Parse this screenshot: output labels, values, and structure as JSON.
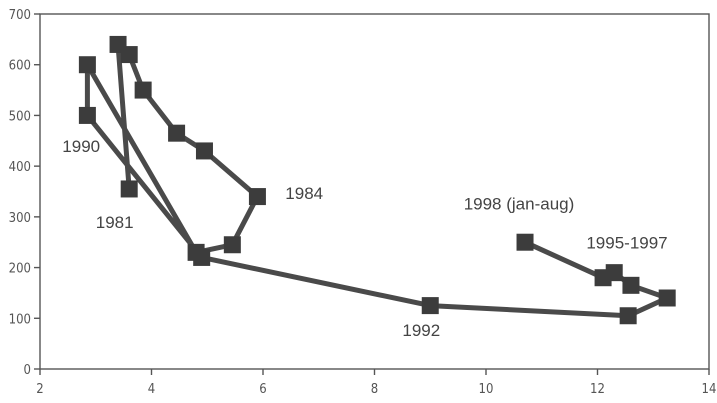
{
  "chart_data": {
    "type": "line",
    "title": "",
    "xlabel": "",
    "ylabel": "",
    "xlim": [
      2,
      14
    ],
    "ylim": [
      0,
      700
    ],
    "xticks": [
      "2",
      "4",
      "6",
      "8",
      "10",
      "12",
      "14"
    ],
    "yticks": [
      "0",
      "100",
      "200",
      "300",
      "400",
      "500",
      "600",
      "700"
    ],
    "grid": false,
    "legend": "none",
    "series": [
      {
        "color": "#3c3c3c",
        "marker": "square",
        "points": [
          {
            "x": 3.6,
            "y": 355
          },
          {
            "x": 3.4,
            "y": 640
          },
          {
            "x": 3.6,
            "y": 620
          },
          {
            "x": 3.85,
            "y": 550
          },
          {
            "x": 4.45,
            "y": 465
          },
          {
            "x": 4.95,
            "y": 430
          },
          {
            "x": 5.9,
            "y": 340
          },
          {
            "x": 5.45,
            "y": 245
          },
          {
            "x": 4.8,
            "y": 230
          },
          {
            "x": 2.85,
            "y": 600
          },
          {
            "x": 2.85,
            "y": 500
          },
          {
            "x": 4.9,
            "y": 220
          },
          {
            "x": 9.0,
            "y": 125
          },
          {
            "x": 12.55,
            "y": 105
          },
          {
            "x": 13.25,
            "y": 140
          },
          {
            "x": 12.6,
            "y": 165
          },
          {
            "x": 12.3,
            "y": 190
          },
          {
            "x": 12.1,
            "y": 180
          },
          {
            "x": 10.7,
            "y": 250
          }
        ]
      }
    ],
    "annotations": [
      {
        "text": "1990",
        "x": 2.4,
        "y": 428
      },
      {
        "text": "1981",
        "x": 3.0,
        "y": 278
      },
      {
        "text": "1984",
        "x": 6.4,
        "y": 335
      },
      {
        "text": "1998 (jan-aug)",
        "x": 9.6,
        "y": 315
      },
      {
        "text": "1995-1997",
        "x": 11.8,
        "y": 238
      },
      {
        "text": "1992",
        "x": 8.5,
        "y": 65
      }
    ]
  }
}
